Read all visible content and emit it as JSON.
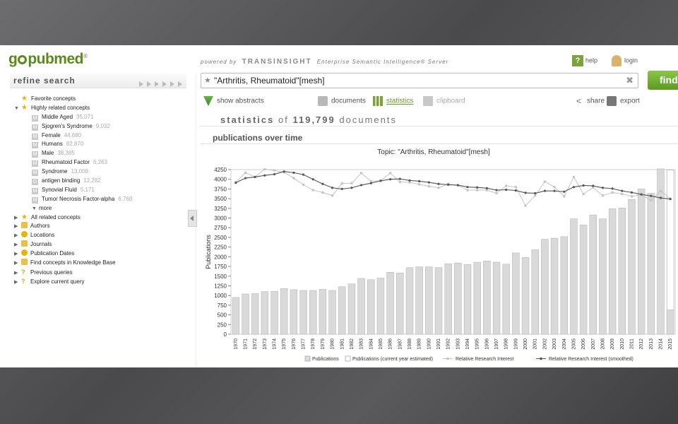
{
  "header": {
    "logo_text_start": "g",
    "logo_text_end": "pubmed",
    "logo_mark": "®",
    "powered_prefix": "powered by",
    "powered_brand": "TRANSINSIGHT",
    "powered_suffix": "Enterprise Semantic Intelligence® Server",
    "help_label": "help",
    "login_label": "login"
  },
  "refine": {
    "title": "refine search"
  },
  "tree": {
    "favorite": "Favorite concepts",
    "highly_related": "Highly related concepts",
    "concepts": [
      {
        "label": "Middle Aged",
        "count": "35,071",
        "icon": "M"
      },
      {
        "label": "Sjogren's Syndrome",
        "count": "9,032",
        "icon": "M"
      },
      {
        "label": "Female",
        "count": "44,680",
        "icon": "M"
      },
      {
        "label": "Humans",
        "count": "82,870",
        "icon": "M"
      },
      {
        "label": "Male",
        "count": "38,385",
        "icon": "M"
      },
      {
        "label": "Rheumatoid Factor",
        "count": "6,263",
        "icon": "M"
      },
      {
        "label": "Syndrome",
        "count": "13,008",
        "icon": "M"
      },
      {
        "label": "antigen binding",
        "count": "12,282",
        "icon": "G"
      },
      {
        "label": "Synovial Fluid",
        "count": "5,171",
        "icon": "M"
      },
      {
        "label": "Tumor Necrosis Factor-alpha",
        "count": "6,768",
        "icon": "M"
      }
    ],
    "more": "more",
    "sections": [
      {
        "label": "All related concepts",
        "icon": "star-icon"
      },
      {
        "label": "Authors",
        "icon": "person-icon"
      },
      {
        "label": "Locations",
        "icon": "globe-icon"
      },
      {
        "label": "Journals",
        "icon": "journal-icon"
      },
      {
        "label": "Publication Dates",
        "icon": "calendar-icon"
      },
      {
        "label": "Find concepts in Knowledge Base",
        "icon": "search-icon"
      },
      {
        "label": "Previous queries",
        "icon": "question-icon"
      },
      {
        "label": "Explore current query",
        "icon": "question-icon"
      }
    ]
  },
  "search": {
    "value": "\"Arthritis, Rheumatoid\"[mesh]",
    "find_label": "find"
  },
  "toolbar": {
    "show_abstracts": "show abstracts",
    "documents": "documents",
    "statistics": "statistics",
    "clipboard": "clipboard",
    "share": "share",
    "export": "export"
  },
  "statistics": {
    "word": "statistics",
    "of": "of",
    "count": "119,799",
    "unit": "documents"
  },
  "section_title": "publications over time",
  "colors": {
    "bar": "#d9d9d9",
    "bar_border": "#b9b9b9",
    "line": "#c4c4c4",
    "smooth": "#555555",
    "accent": "#6a9a2a"
  },
  "chart_data": {
    "type": "bar",
    "title": "Topic: \"Arthritis, Rheumatoid\"[mesh]",
    "ylabel": "Publications",
    "ylim": [
      0,
      4250
    ],
    "yticks": [
      0,
      250,
      500,
      750,
      1000,
      1250,
      1500,
      1750,
      2000,
      2250,
      2500,
      2750,
      3000,
      3250,
      3500,
      3750,
      4000,
      4250
    ],
    "categories": [
      "1970",
      "1971",
      "1972",
      "1973",
      "1974",
      "1975",
      "1976",
      "1977",
      "1978",
      "1979",
      "1980",
      "1981",
      "1982",
      "1983",
      "1984",
      "1985",
      "1986",
      "1987",
      "1988",
      "1989",
      "1990",
      "1991",
      "1992",
      "1993",
      "1994",
      "1995",
      "1996",
      "1997",
      "1998",
      "1999",
      "2000",
      "2001",
      "2002",
      "2003",
      "2004",
      "2005",
      "2006",
      "2007",
      "2008",
      "2009",
      "2010",
      "2011",
      "2012",
      "2013",
      "2014",
      "2015"
    ],
    "series": [
      {
        "name": "Publications",
        "type": "bar",
        "values": [
          950,
          1040,
          1050,
          1100,
          1110,
          1180,
          1150,
          1130,
          1130,
          1160,
          1130,
          1230,
          1300,
          1440,
          1410,
          1450,
          1600,
          1580,
          1720,
          1740,
          1740,
          1720,
          1820,
          1840,
          1800,
          1860,
          1890,
          1860,
          1810,
          2100,
          1980,
          2180,
          2450,
          2480,
          2520,
          2980,
          2820,
          3080,
          2980,
          3240,
          3260,
          3480,
          3750,
          3640,
          4270,
          630
        ]
      },
      {
        "name": "Publications (current year estimated)",
        "type": "bar_outline",
        "values": [
          null,
          null,
          null,
          null,
          null,
          null,
          null,
          null,
          null,
          null,
          null,
          null,
          null,
          null,
          null,
          null,
          null,
          null,
          null,
          null,
          null,
          null,
          null,
          null,
          null,
          null,
          null,
          null,
          null,
          null,
          null,
          null,
          null,
          null,
          null,
          null,
          null,
          null,
          null,
          null,
          null,
          null,
          null,
          null,
          null,
          4240
        ]
      },
      {
        "name": "Relative Research Interest",
        "type": "line",
        "values": [
          3920,
          4170,
          4060,
          4260,
          4230,
          4180,
          4030,
          3860,
          3720,
          3660,
          3580,
          3890,
          3900,
          4160,
          3950,
          3960,
          4160,
          3930,
          3920,
          3870,
          3820,
          3780,
          3880,
          3840,
          3720,
          3720,
          3720,
          3640,
          3830,
          3800,
          3320,
          3580,
          3940,
          3800,
          3560,
          4060,
          3620,
          3790,
          3580,
          3660,
          3620,
          3560,
          3600,
          3460,
          3700,
          3500
        ]
      },
      {
        "name": "Relative Research Interest (smoothed)",
        "type": "line_smoothed",
        "values": [
          3910,
          4030,
          4060,
          4100,
          4130,
          4200,
          4170,
          4120,
          4000,
          3880,
          3780,
          3750,
          3780,
          3850,
          3900,
          3960,
          4000,
          4010,
          3970,
          3950,
          3920,
          3880,
          3860,
          3850,
          3800,
          3790,
          3770,
          3720,
          3730,
          3710,
          3650,
          3640,
          3700,
          3700,
          3680,
          3800,
          3840,
          3830,
          3780,
          3760,
          3700,
          3660,
          3610,
          3570,
          3520,
          3490
        ]
      }
    ],
    "legend_position": "bottom"
  }
}
